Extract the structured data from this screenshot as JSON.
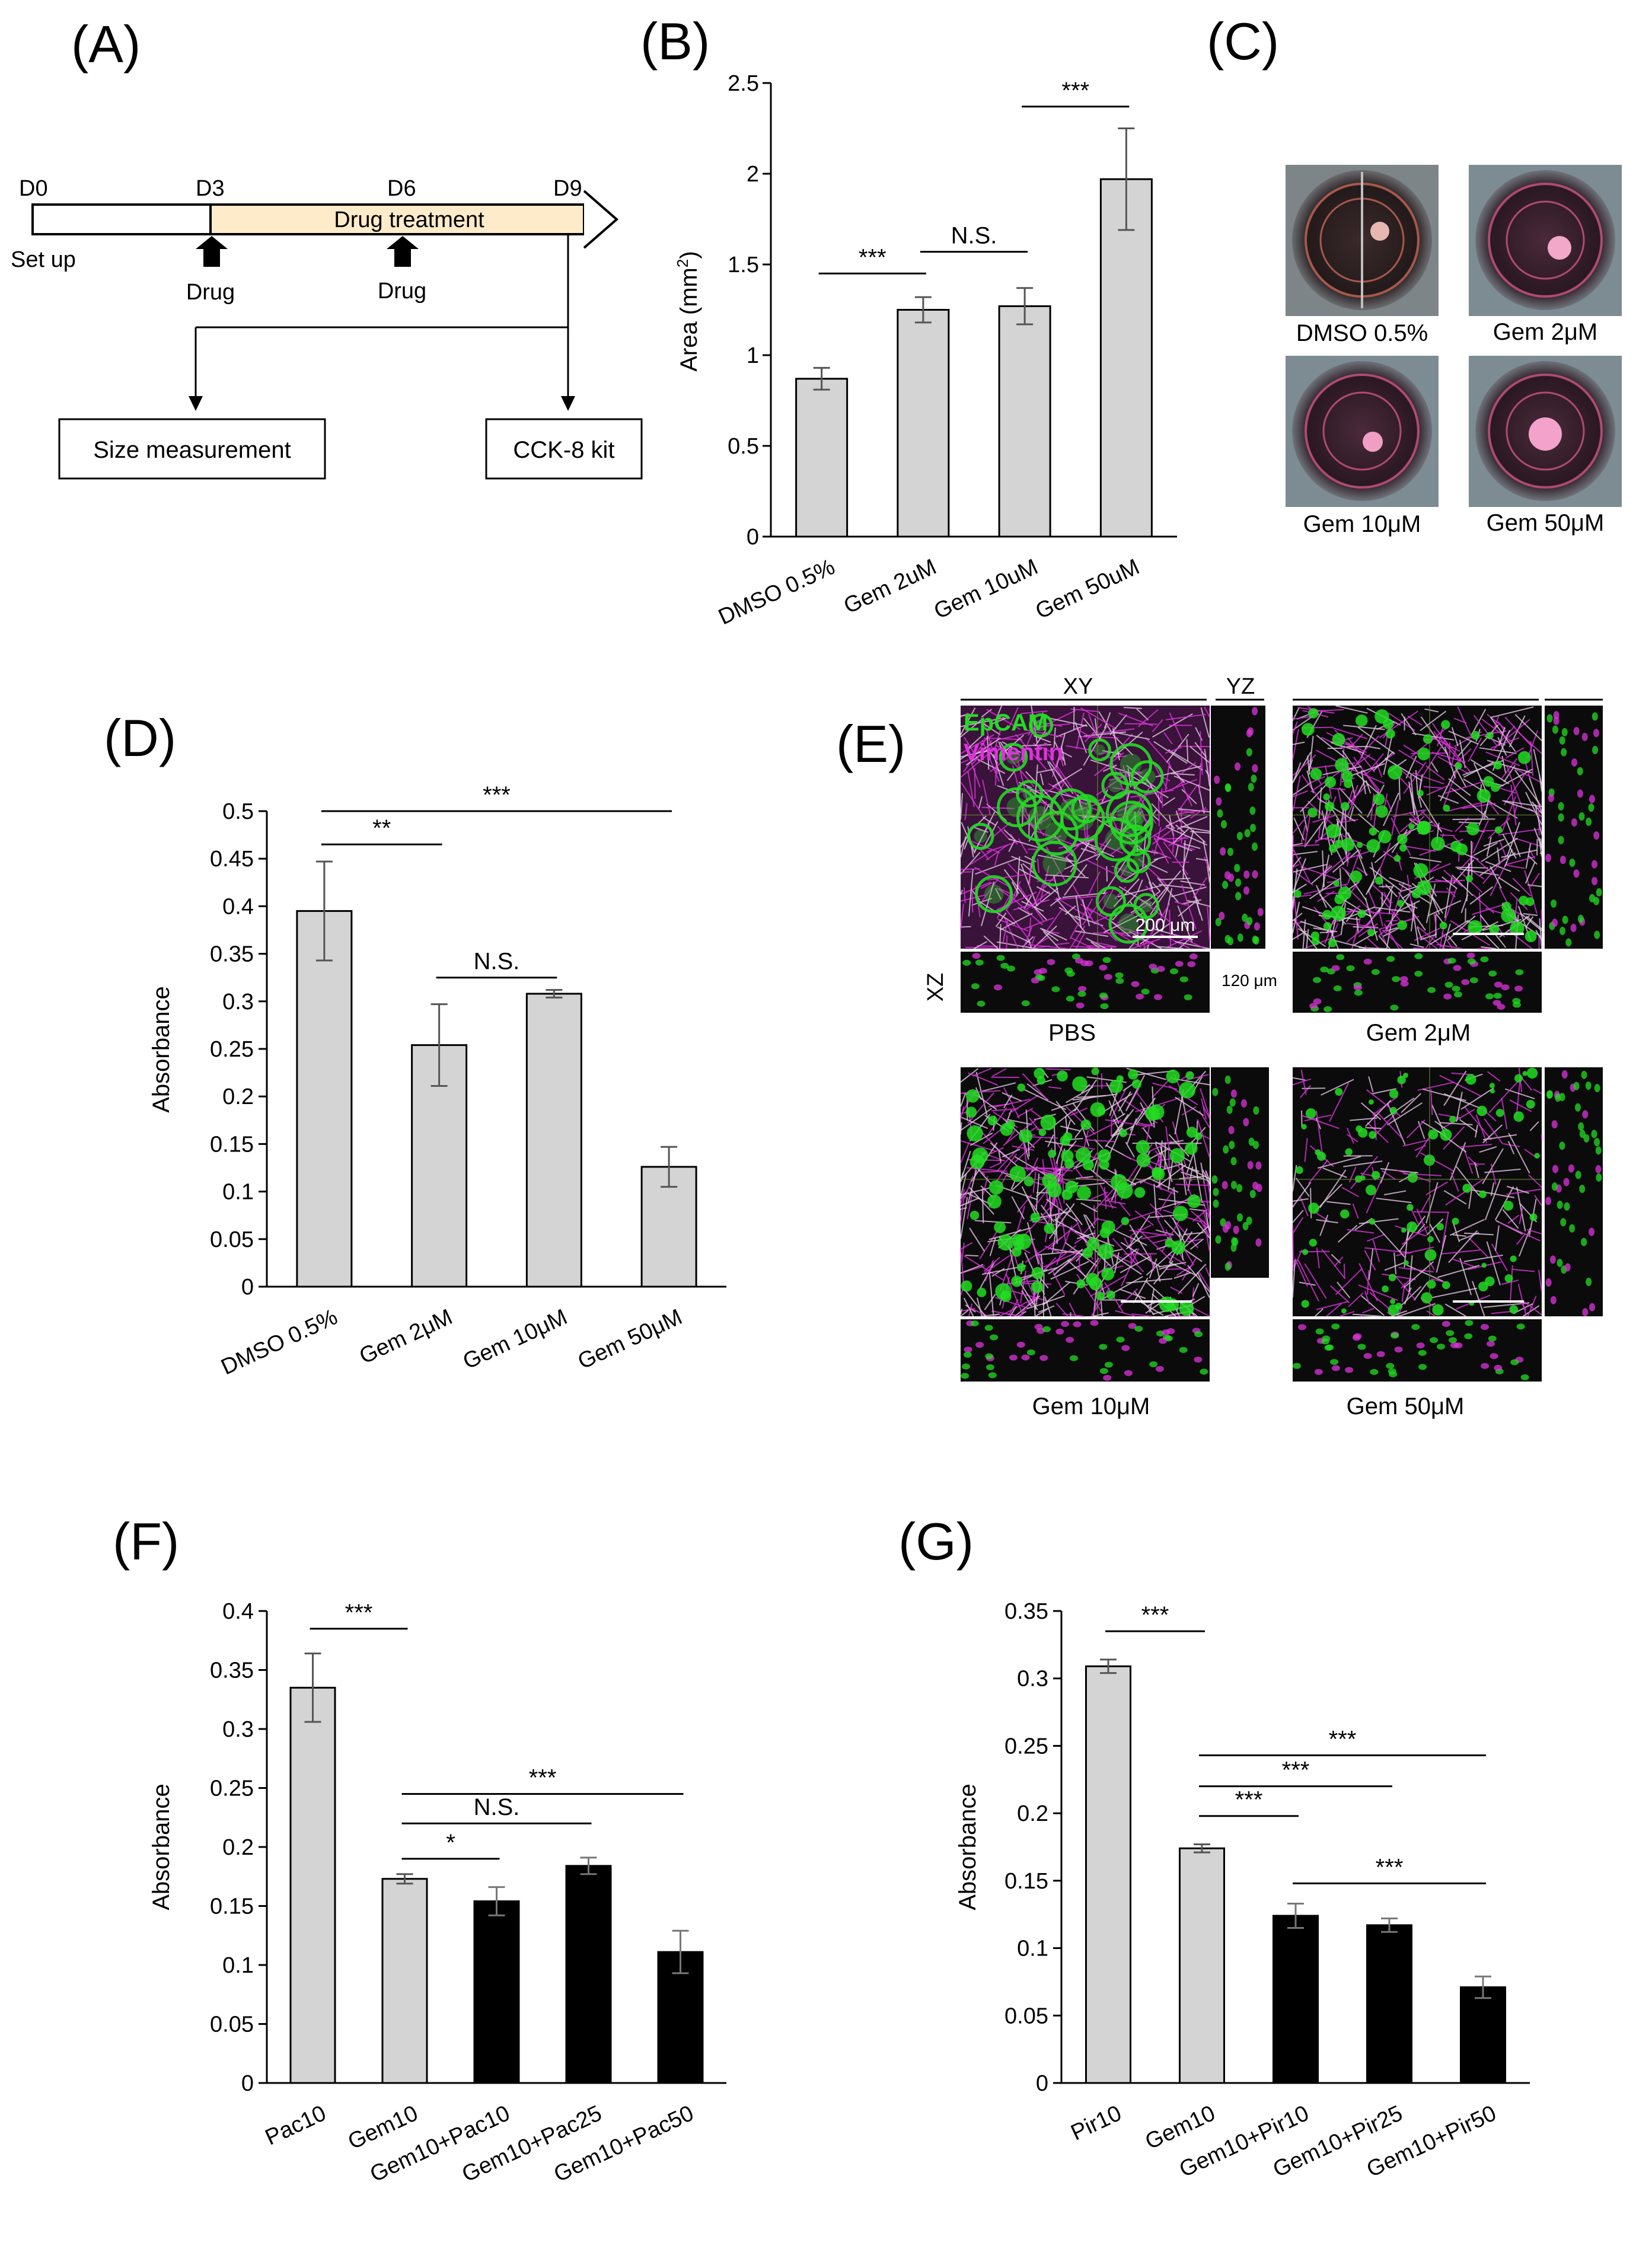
{
  "panel_labels": [
    "(A)",
    "(B)",
    "(C)",
    "(D)",
    "(E)",
    "(F)",
    "(G)"
  ],
  "panel_a": {
    "days": [
      "D0",
      "D3",
      "D6",
      "D9"
    ],
    "setup_label": "Set up",
    "treatment_label": "Drug treatment",
    "drug_label": "Drug",
    "size_box": "Size measurement",
    "cck_box": "CCK-8 kit"
  },
  "panel_c": {
    "wells": [
      {
        "label": "DMSO 0.5%",
        "spheroid_color": "#e8b8b0"
      },
      {
        "label": "Gem 2μM",
        "spheroid_color": "#f2a8c8"
      },
      {
        "label": "Gem 10μM",
        "spheroid_color": "#f19ec4"
      },
      {
        "label": "Gem 50μM",
        "spheroid_color": "#f3a2cc"
      }
    ]
  },
  "panel_e": {
    "view_labels": [
      "XY",
      "YZ",
      "XZ"
    ],
    "legend": [
      "EpCAM",
      "Vimentin"
    ],
    "scale_label": "200 μm",
    "depth_label": "120 μm",
    "captions": [
      "PBS",
      "Gem 2μM",
      "Gem 10μM",
      "Gem 50μM"
    ],
    "colors": {
      "epcam": "#22dd22",
      "vimentin": "#dd33dd"
    }
  },
  "chart_data": [
    {
      "id": "B",
      "type": "bar",
      "categories": [
        "DMSO 0.5%",
        "Gem 2uM",
        "Gem 10uM",
        "Gem 50uM"
      ],
      "values": [
        0.87,
        1.25,
        1.27,
        1.97
      ],
      "errors": [
        0.06,
        0.07,
        0.1,
        0.28
      ],
      "bar_colors": [
        "#d4d4d4",
        "#d4d4d4",
        "#d4d4d4",
        "#d4d4d4"
      ],
      "ylabel": "Area (mm",
      "ylabel_sup": "2",
      "ylabel_end": ")",
      "ylim": [
        0,
        2.5
      ],
      "yticks": [
        "0",
        "0.5",
        "1",
        "1.5",
        "2",
        "2.5"
      ],
      "significance": [
        {
          "from": 0,
          "to": 1,
          "label": "***",
          "level": 1.45
        },
        {
          "from": 1,
          "to": 2,
          "label": "N.S.",
          "level": 1.57
        },
        {
          "from": 2,
          "to": 3,
          "label": "***",
          "level": 2.37
        }
      ]
    },
    {
      "id": "D",
      "type": "bar",
      "categories": [
        "DMSO 0.5%",
        "Gem 2μM",
        "Gem 10μM",
        "Gem 50μM"
      ],
      "values": [
        0.395,
        0.254,
        0.308,
        0.126
      ],
      "errors": [
        0.052,
        0.043,
        0.004,
        0.021
      ],
      "bar_colors": [
        "#d4d4d4",
        "#d4d4d4",
        "#d4d4d4",
        "#d4d4d4"
      ],
      "ylabel": "Absorbance",
      "ylim": [
        0,
        0.5
      ],
      "yticks": [
        "0",
        "0.05",
        "0.1",
        "0.15",
        "0.2",
        "0.25",
        "0.3",
        "0.35",
        "0.4",
        "0.45",
        "0.5"
      ],
      "significance": [
        {
          "from": 0,
          "to": 1,
          "label": "**",
          "level": 0.465
        },
        {
          "from": 1,
          "to": 2,
          "label": "N.S.",
          "level": 0.325
        },
        {
          "from": 0,
          "to": 3,
          "label": "***",
          "level": 0.5
        }
      ]
    },
    {
      "id": "F",
      "type": "bar",
      "categories": [
        "Pac10",
        "Gem10",
        "Gem10+Pac10",
        "Gem10+Pac25",
        "Gem10+Pac50"
      ],
      "values": [
        0.335,
        0.173,
        0.154,
        0.184,
        0.111
      ],
      "errors": [
        0.029,
        0.004,
        0.012,
        0.007,
        0.018
      ],
      "bar_colors": [
        "#d4d4d4",
        "#d4d4d4",
        "#000000",
        "#000000",
        "#000000"
      ],
      "ylabel": "Absorbance",
      "ylim": [
        0,
        0.4
      ],
      "yticks": [
        "0",
        "0.05",
        "0.1",
        "0.15",
        "0.2",
        "0.25",
        "0.3",
        "0.35",
        "0.4"
      ],
      "significance": [
        {
          "from": 0,
          "to": 1,
          "label": "***",
          "level": 0.385
        },
        {
          "from": 1,
          "to": 2,
          "label": "*",
          "level": 0.19
        },
        {
          "from": 1,
          "to": 3,
          "label": "N.S.",
          "level": 0.22
        },
        {
          "from": 1,
          "to": 4,
          "label": "***",
          "level": 0.245
        }
      ]
    },
    {
      "id": "G",
      "type": "bar",
      "categories": [
        "Pir10",
        "Gem10",
        "Gem10+Pir10",
        "Gem10+Pir25",
        "Gem10+Pir50"
      ],
      "values": [
        0.309,
        0.174,
        0.124,
        0.117,
        0.071
      ],
      "errors": [
        0.005,
        0.003,
        0.009,
        0.005,
        0.008
      ],
      "bar_colors": [
        "#d4d4d4",
        "#d4d4d4",
        "#000000",
        "#000000",
        "#000000"
      ],
      "ylabel": "Absorbance",
      "ylim": [
        0,
        0.35
      ],
      "yticks": [
        "0",
        "0.05",
        "0.1",
        "0.15",
        "0.2",
        "0.25",
        "0.3",
        "0.35"
      ],
      "significance": [
        {
          "from": 0,
          "to": 1,
          "label": "***",
          "level": 0.335
        },
        {
          "from": 1,
          "to": 2,
          "label": "***",
          "level": 0.198
        },
        {
          "from": 1,
          "to": 3,
          "label": "***",
          "level": 0.22
        },
        {
          "from": 1,
          "to": 4,
          "label": "***",
          "level": 0.243
        },
        {
          "from": 2,
          "to": 4,
          "label": "***",
          "level": 0.148
        }
      ]
    }
  ]
}
